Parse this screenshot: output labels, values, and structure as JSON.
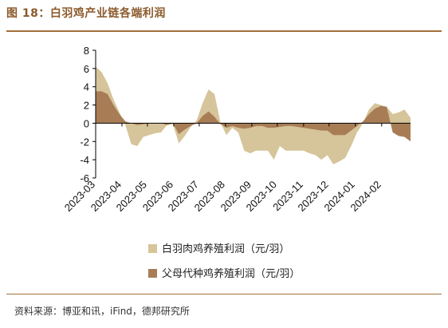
{
  "header": {
    "title": "图 18：白羽鸡产业链各端利润",
    "source": "资料来源：博亚和讯，iFind，德邦研究所"
  },
  "colors": {
    "accent": "#8B5A2B",
    "series_1": "#D6C49A",
    "series_2": "#A87D55"
  },
  "chart_data": {
    "type": "area",
    "ylim": [
      -6,
      8
    ],
    "yticks": [
      8,
      6,
      4,
      2,
      0,
      -2,
      -4,
      -6
    ],
    "xlabels": [
      "2023-03",
      "2023-04",
      "2023-05",
      "2023-06",
      "2023-07",
      "2023-08",
      "2023-09",
      "2023-10",
      "2023-11",
      "2023-12",
      "2024-01",
      "2024-02"
    ],
    "legend_position": "bottom",
    "x": [
      "2023-03-01",
      "2023-03-08",
      "2023-03-15",
      "2023-03-22",
      "2023-03-29",
      "2023-04-05",
      "2023-04-12",
      "2023-04-19",
      "2023-04-26",
      "2023-05-03",
      "2023-05-10",
      "2023-05-17",
      "2023-05-24",
      "2023-05-31",
      "2023-06-07",
      "2023-06-14",
      "2023-06-21",
      "2023-06-28",
      "2023-07-05",
      "2023-07-12",
      "2023-07-19",
      "2023-07-26",
      "2023-08-02",
      "2023-08-09",
      "2023-08-16",
      "2023-08-23",
      "2023-08-30",
      "2023-09-06",
      "2023-09-13",
      "2023-09-20",
      "2023-09-27",
      "2023-10-04",
      "2023-10-11",
      "2023-10-18",
      "2023-10-25",
      "2023-11-01",
      "2023-11-08",
      "2023-11-15",
      "2023-11-22",
      "2023-11-29",
      "2023-12-06",
      "2023-12-13",
      "2023-12-20",
      "2023-12-27",
      "2024-01-03",
      "2024-01-10",
      "2024-01-17",
      "2024-01-24",
      "2024-01-31",
      "2024-02-07",
      "2024-02-14",
      "2024-02-21",
      "2024-02-28",
      "2024-03-06"
    ],
    "series": [
      {
        "name": "白羽肉鸡养殖利润（元/羽）",
        "values": [
          6.2,
          5.6,
          4.4,
          2.6,
          1.2,
          -0.2,
          -2.3,
          -2.5,
          -1.5,
          -1.3,
          -1.1,
          -1.0,
          -0.2,
          -0.1,
          -2.2,
          -1.4,
          -0.4,
          0.3,
          2.2,
          3.7,
          3.2,
          0.1,
          -1.3,
          -0.5,
          -1.0,
          -3.0,
          -3.3,
          -3.0,
          -3.0,
          -3.0,
          -4.0,
          -2.5,
          -3.0,
          -3.0,
          -3.0,
          -3.0,
          -3.3,
          -3.5,
          -4.0,
          -3.5,
          -4.5,
          -4.2,
          -3.8,
          -2.5,
          -1.0,
          0.0,
          1.5,
          2.2,
          2.0,
          1.8,
          1.0,
          1.2,
          1.5,
          0.6
        ]
      },
      {
        "name": "父母代种鸡养殖利润（元/羽）",
        "values": [
          3.5,
          3.5,
          3.2,
          2.0,
          1.0,
          0.2,
          0.0,
          -0.2,
          -0.1,
          0.0,
          0.0,
          0.0,
          -0.2,
          0.0,
          -1.2,
          -0.7,
          -0.3,
          0.0,
          0.8,
          1.3,
          0.7,
          -0.1,
          -0.5,
          -0.3,
          -0.5,
          -0.6,
          -0.5,
          -0.3,
          -0.3,
          -0.5,
          -0.5,
          -0.4,
          -0.3,
          -0.3,
          -0.4,
          -0.5,
          -0.6,
          -0.7,
          -0.8,
          -0.8,
          -1.3,
          -1.3,
          -1.3,
          -0.8,
          -0.3,
          0.2,
          1.0,
          1.6,
          1.9,
          1.8,
          -1.0,
          -1.4,
          -1.5,
          -2.0
        ]
      }
    ]
  }
}
